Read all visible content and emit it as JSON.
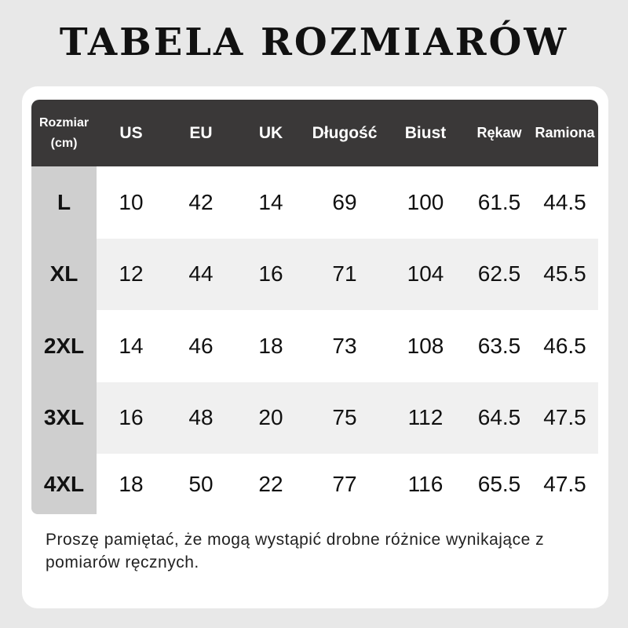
{
  "title": "TABELA ROZMIARÓW",
  "headers": [
    "Rozmiar (cm)",
    "US",
    "EU",
    "UK",
    "Długość",
    "Biust",
    "Rękaw",
    "Ramiona"
  ],
  "rows": [
    [
      "L",
      "10",
      "42",
      "14",
      "69",
      "100",
      "61.5",
      "44.5"
    ],
    [
      "XL",
      "12",
      "44",
      "16",
      "71",
      "104",
      "62.5",
      "45.5"
    ],
    [
      "2XL",
      "14",
      "46",
      "18",
      "73",
      "108",
      "63.5",
      "46.5"
    ],
    [
      "3XL",
      "16",
      "48",
      "20",
      "75",
      "112",
      "64.5",
      "47.5"
    ],
    [
      "4XL",
      "18",
      "50",
      "22",
      "77",
      "116",
      "65.5",
      "47.5"
    ]
  ],
  "note": "Proszę pamiętać, że mogą wystąpić drobne różnice wynikające z pomiarów ręcznych.",
  "colors": {
    "header_bg": "#3a3838",
    "size_column_bg": "#cfcfcf",
    "alt_row_bg": "#f0f0f0",
    "page_bg": "#e8e8e8"
  }
}
